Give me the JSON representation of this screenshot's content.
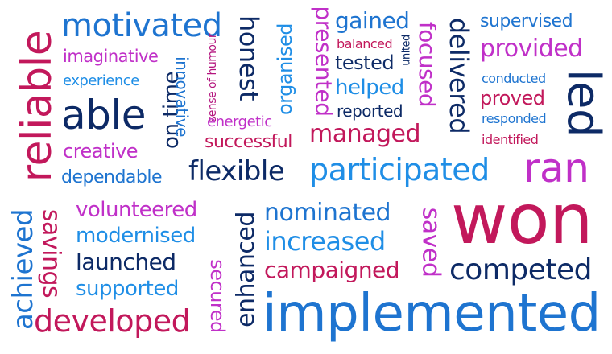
{
  "words": [
    {
      "id": "reliable",
      "text": "reliable",
      "color": "pink"
    },
    {
      "id": "motivated",
      "text": "motivated",
      "color": "blue"
    },
    {
      "id": "imaginative",
      "text": "imaginative",
      "color": "magenta"
    },
    {
      "id": "experience",
      "text": "experience",
      "color": "lblue"
    },
    {
      "id": "able",
      "text": "able",
      "color": "navy"
    },
    {
      "id": "creative",
      "text": "creative",
      "color": "magenta"
    },
    {
      "id": "dependable",
      "text": "dependable",
      "color": "blue"
    },
    {
      "id": "on-time",
      "text": "on time",
      "color": "navy"
    },
    {
      "id": "innovative",
      "text": "innovative",
      "color": "blue"
    },
    {
      "id": "sense-of-humour",
      "text": "sense of humour",
      "color": "dmag"
    },
    {
      "id": "honest",
      "text": "honest",
      "color": "navy"
    },
    {
      "id": "organised",
      "text": "organised",
      "color": "lblue"
    },
    {
      "id": "presented",
      "text": "presented",
      "color": "magenta"
    },
    {
      "id": "gained",
      "text": "gained",
      "color": "blue"
    },
    {
      "id": "balanced",
      "text": "balanced",
      "color": "pink"
    },
    {
      "id": "united",
      "text": "united",
      "color": "navy"
    },
    {
      "id": "tested",
      "text": "tested",
      "color": "navy"
    },
    {
      "id": "focused",
      "text": "focused",
      "color": "magenta"
    },
    {
      "id": "delivered",
      "text": "delivered",
      "color": "navy"
    },
    {
      "id": "supervised",
      "text": "supervised",
      "color": "blue"
    },
    {
      "id": "provided",
      "text": "provided",
      "color": "magenta"
    },
    {
      "id": "conducted",
      "text": "conducted",
      "color": "blue"
    },
    {
      "id": "led",
      "text": "led",
      "color": "navy"
    },
    {
      "id": "helped",
      "text": "helped",
      "color": "lblue"
    },
    {
      "id": "reported",
      "text": "reported",
      "color": "navy"
    },
    {
      "id": "proved",
      "text": "proved",
      "color": "pink"
    },
    {
      "id": "responded",
      "text": "responded",
      "color": "blue"
    },
    {
      "id": "energetic",
      "text": "energetic",
      "color": "magenta"
    },
    {
      "id": "successful",
      "text": "successful",
      "color": "pink"
    },
    {
      "id": "managed",
      "text": "managed",
      "color": "pink"
    },
    {
      "id": "identified",
      "text": "identified",
      "color": "pink"
    },
    {
      "id": "flexible",
      "text": "flexible",
      "color": "navy"
    },
    {
      "id": "participated",
      "text": "participated",
      "color": "lblue"
    },
    {
      "id": "ran",
      "text": "ran",
      "color": "magenta"
    },
    {
      "id": "achieved",
      "text": "achieved",
      "color": "blue"
    },
    {
      "id": "savings",
      "text": "savings",
      "color": "pink"
    },
    {
      "id": "volunteered",
      "text": "volunteered",
      "color": "magenta"
    },
    {
      "id": "modernised",
      "text": "modernised",
      "color": "lblue"
    },
    {
      "id": "launched",
      "text": "launched",
      "color": "navy"
    },
    {
      "id": "supported",
      "text": "supported",
      "color": "lblue"
    },
    {
      "id": "developed",
      "text": "developed",
      "color": "pink"
    },
    {
      "id": "secured",
      "text": "secured",
      "color": "magenta"
    },
    {
      "id": "enhanced",
      "text": "enhanced",
      "color": "navy"
    },
    {
      "id": "nominated",
      "text": "nominated",
      "color": "blue"
    },
    {
      "id": "increased",
      "text": "increased",
      "color": "lblue"
    },
    {
      "id": "campaigned",
      "text": "campaigned",
      "color": "pink"
    },
    {
      "id": "saved",
      "text": "saved",
      "color": "magenta"
    },
    {
      "id": "won",
      "text": "won",
      "color": "pink"
    },
    {
      "id": "competed",
      "text": "competed",
      "color": "navy"
    },
    {
      "id": "implemented",
      "text": "implemented",
      "color": "blue"
    }
  ]
}
